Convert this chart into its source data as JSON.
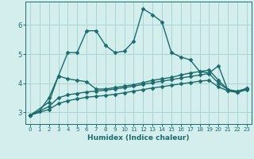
{
  "xlabel": "Humidex (Indice chaleur)",
  "background_color": "#d4eeee",
  "grid_color": "#aad4d4",
  "line_color": "#1a6b6b",
  "xlim": [
    -0.5,
    23.5
  ],
  "ylim": [
    2.6,
    6.8
  ],
  "yticks": [
    3,
    4,
    5,
    6
  ],
  "xticks": [
    0,
    1,
    2,
    3,
    4,
    5,
    6,
    7,
    8,
    9,
    10,
    11,
    12,
    13,
    14,
    15,
    16,
    17,
    18,
    19,
    20,
    21,
    22,
    23
  ],
  "series": [
    {
      "x": [
        0,
        1,
        2,
        3,
        4,
        5,
        6,
        7,
        8,
        9,
        10,
        11,
        12,
        13,
        14,
        15,
        16,
        17,
        18,
        19,
        20,
        21,
        22,
        23
      ],
      "y": [
        2.9,
        3.05,
        3.5,
        4.25,
        5.05,
        5.05,
        5.8,
        5.8,
        5.3,
        5.05,
        5.1,
        5.45,
        6.55,
        6.35,
        6.1,
        5.05,
        4.9,
        4.8,
        4.4,
        4.35,
        4.6,
        3.75,
        3.7,
        3.8
      ],
      "marker": "D",
      "markersize": 2.5,
      "linewidth": 1.0
    },
    {
      "x": [
        0,
        2,
        3,
        4,
        5,
        6,
        7,
        8,
        9,
        10,
        11,
        12,
        13,
        14,
        15,
        16,
        17,
        18,
        19,
        20,
        21,
        22,
        23
      ],
      "y": [
        2.9,
        3.35,
        4.25,
        4.15,
        4.1,
        4.05,
        3.8,
        3.8,
        3.85,
        3.9,
        3.95,
        4.02,
        4.1,
        4.15,
        4.2,
        4.28,
        4.35,
        4.4,
        4.45,
        4.1,
        3.78,
        3.72,
        3.82
      ],
      "marker": "D",
      "markersize": 2.5,
      "linewidth": 1.0
    },
    {
      "x": [
        0,
        2,
        3,
        4,
        5,
        6,
        7,
        8,
        9,
        10,
        11,
        12,
        13,
        14,
        15,
        16,
        17,
        18,
        19,
        20,
        21,
        22,
        23
      ],
      "y": [
        2.9,
        3.2,
        3.5,
        3.6,
        3.65,
        3.7,
        3.73,
        3.76,
        3.8,
        3.85,
        3.9,
        3.96,
        4.02,
        4.07,
        4.12,
        4.18,
        4.23,
        4.28,
        4.33,
        4.0,
        3.78,
        3.72,
        3.82
      ],
      "marker": "D",
      "markersize": 2.5,
      "linewidth": 1.0
    },
    {
      "x": [
        0,
        2,
        3,
        4,
        5,
        6,
        7,
        8,
        9,
        10,
        11,
        12,
        13,
        14,
        15,
        16,
        17,
        18,
        19,
        20,
        21,
        22,
        23
      ],
      "y": [
        2.9,
        3.1,
        3.3,
        3.4,
        3.46,
        3.52,
        3.55,
        3.58,
        3.62,
        3.67,
        3.73,
        3.78,
        3.84,
        3.88,
        3.93,
        3.98,
        4.02,
        4.07,
        4.1,
        3.87,
        3.74,
        3.68,
        3.78
      ],
      "marker": "D",
      "markersize": 2.5,
      "linewidth": 1.0
    }
  ]
}
